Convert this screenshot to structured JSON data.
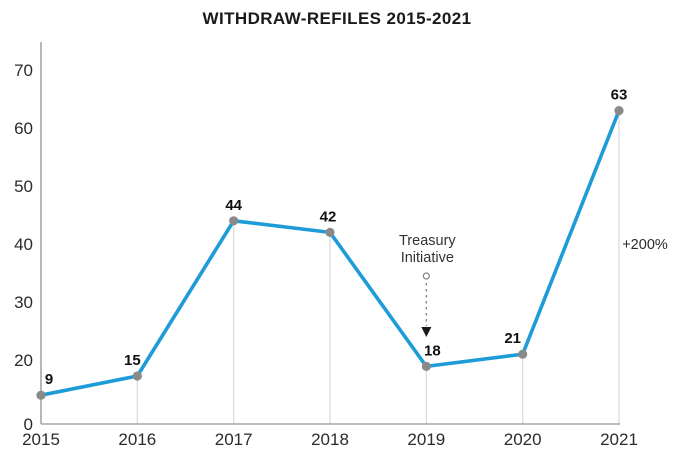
{
  "chart_data": {
    "type": "line",
    "title": "WITHDRAW-REFILES 2015-2021",
    "categories": [
      "2015",
      "2016",
      "2017",
      "2018",
      "2019",
      "2020",
      "2021"
    ],
    "values": [
      9,
      15,
      44,
      42,
      18,
      21,
      63
    ],
    "point_labels": [
      "9",
      "15",
      "44",
      "42",
      "18",
      "21",
      "63"
    ],
    "y_ticks": [
      0,
      20,
      30,
      40,
      50,
      60,
      70
    ],
    "ylim": [
      0,
      70
    ],
    "xlabel": "",
    "ylabel": "",
    "grid": "off",
    "legend": "none",
    "annotation": {
      "line1": "Treasury",
      "line2": "Initiative",
      "target_category": "2019",
      "target_index": 4
    },
    "right_label": "+200%",
    "label_dx": [
      8,
      -5,
      0,
      -2,
      6,
      -10,
      0
    ],
    "colors": {
      "line": "#1E9CD8",
      "marker": "#8A8A8A",
      "axis": "#A6A6A6",
      "drop_line": "#DBDBDB",
      "title_text": "#1A1A1A",
      "value_text": "#111111",
      "tick_text": "#2B2B2B",
      "annotation_text": "#333333",
      "arrow": "#1A1A1A"
    }
  }
}
